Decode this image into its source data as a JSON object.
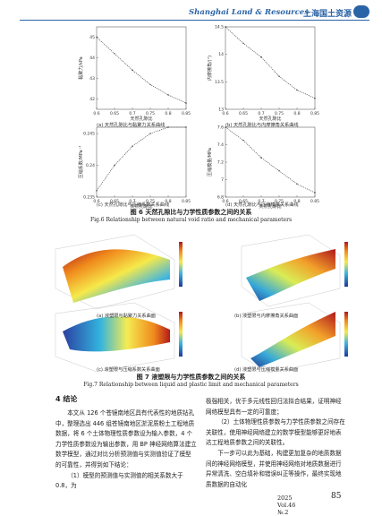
{
  "header": {
    "journal_en": "Shanghai Land & Resources",
    "journal_cn": "上海国土资源"
  },
  "figure6": {
    "caption_cn": "图 6   天然孔隙比与力学性质参数之间的关系",
    "caption_en": "Fig.6   Relationship between natural void ratio and mechanical parameters",
    "subplots": [
      {
        "label": "(a)  天然孔隙比与黏聚力关系曲线"
      },
      {
        "label": "(b)  天然孔隙比与内摩擦角关系曲线"
      },
      {
        "label": "(c)  天然孔隙比与压缩系数关系曲线"
      },
      {
        "label": "(d)  天然孔隙比与压缩模量关系曲线"
      }
    ]
  },
  "figure7": {
    "caption_cn": "图 7   液塑限与力学性质参数之间的关系",
    "caption_en": "Fig.7   Relationship between liquid and plastic limit and mechanical parameters",
    "subplots": [
      {
        "label": "(a)  液塑限与黏聚力关系曲面"
      },
      {
        "label": "(b)  液塑限与内摩擦角关系曲面"
      },
      {
        "label": "(c)  液塑限与压缩系数关系曲面"
      },
      {
        "label": "(d)  液塑限与压缩模量关系曲面"
      }
    ]
  },
  "section": {
    "title": "4   结论"
  },
  "left_column": [
    "本文从 126 个苍镜南地区具有代表性的地质钻孔中，整理选出 446 组苍镜南地区淤泥质粉土工程地质数据，将 6 个土体物理性质参数设为输入参数，4 个力学性质参数设为输出参数，用 BP 神经网络算法建立数学模型，通过对比分析预测值与实测值验证了模型的可靠性，并得到如下结论：",
    "（1）模型的预测值与实测值的相关系数大于 0.8，为"
  ],
  "right_column": [
    "极强相关，优于多元线性回归法拟合结果，证明神经网络模型具有一定的可靠度；",
    "（2）土体物理性质参数与力学性质参数之间存在关联性，使用神经网络建立的数学模型能够更好地表达工程地质参数之间的关联性。",
    "下一步可以此为基础，构建更加复杂的地质数据间的神经网络模型，并使用神经网络对地质数据进行异常清洗、空白填补和错误纠正等操作，最终实现地质数据的自动化"
  ],
  "footer": {
    "issue": "2025 Vol.46 №.2",
    "page": "85"
  },
  "chart_data": [
    {
      "type": "line",
      "title": "",
      "xlabel": "天然孔隙比",
      "ylabel": "黏聚力/kPa",
      "x": [
        0.6,
        0.65,
        0.7,
        0.75,
        0.8,
        0.85
      ],
      "values": [
        45.0,
        44.2,
        43.4,
        42.7,
        42.2,
        41.8
      ],
      "ylim": [
        41.5,
        45.5
      ],
      "yticks": [
        42,
        43,
        44,
        45
      ]
    },
    {
      "type": "line",
      "title": "",
      "xlabel": "天然孔隙比",
      "ylabel": "内摩擦角/(°)",
      "x": [
        0.6,
        0.65,
        0.7,
        0.75,
        0.8,
        0.85
      ],
      "values": [
        14.5,
        14.2,
        13.95,
        13.6,
        13.35,
        13.2
      ],
      "ylim": [
        13,
        14.5
      ],
      "yticks": [
        13,
        13.5,
        14,
        14.5
      ]
    },
    {
      "type": "line",
      "title": "",
      "xlabel": "天然孔隙比",
      "ylabel": "压缩系数/MPa⁻¹",
      "x": [
        0.6,
        0.65,
        0.7,
        0.75,
        0.8,
        0.85
      ],
      "values": [
        0.236,
        0.24,
        0.243,
        0.245,
        0.246,
        0.246
      ],
      "ylim": [
        0.235,
        0.246
      ],
      "yticks": [
        0.235,
        0.24,
        0.245
      ]
    },
    {
      "type": "line",
      "title": "",
      "xlabel": "天然孔隙比",
      "ylabel": "压缩模量/MPa",
      "x": [
        0.6,
        0.65,
        0.7,
        0.75,
        0.8,
        0.85
      ],
      "values": [
        7.6,
        7.45,
        7.25,
        7.1,
        6.95,
        6.85
      ],
      "ylim": [
        6.8,
        7.6
      ],
      "yticks": [
        6.8,
        7.0,
        7.2,
        7.4,
        7.6
      ]
    }
  ]
}
